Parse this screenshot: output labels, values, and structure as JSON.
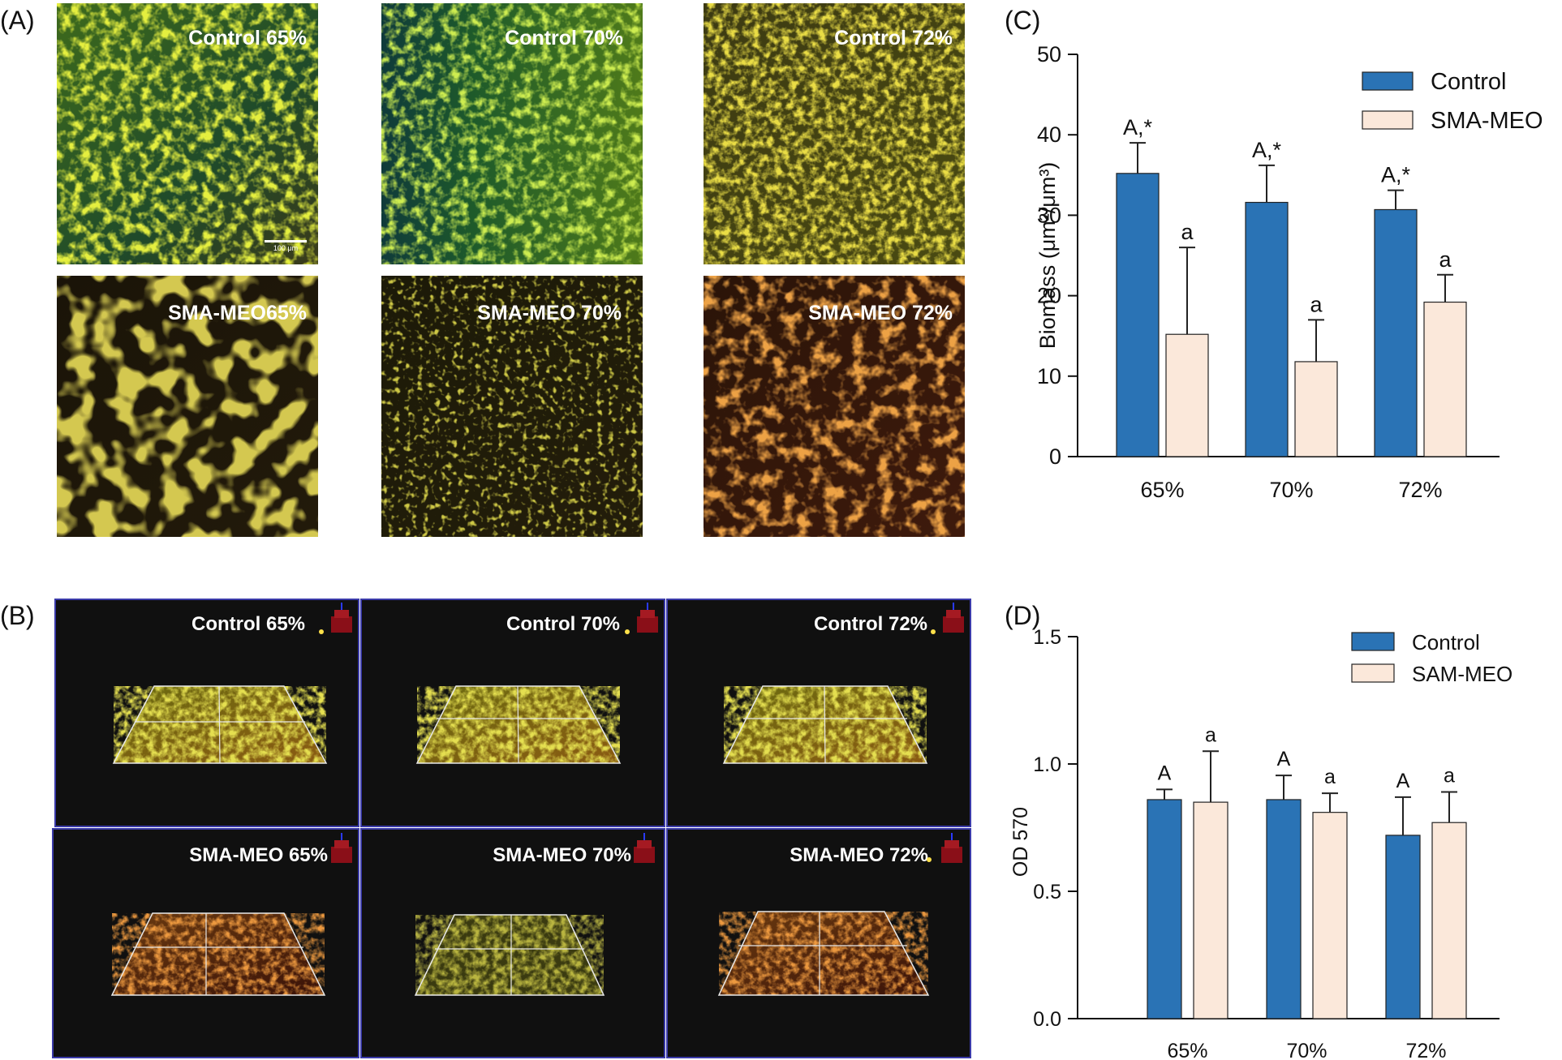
{
  "figure": {
    "panel_labels": [
      "(A)",
      "(B)",
      "(C)",
      "(D)"
    ],
    "colors": {
      "control": "#2a73b5",
      "treatment": "#fbe8da",
      "image_bg": "#101010",
      "frame_border": "#3a3aa8"
    }
  },
  "panelA": {
    "scale_bar": "100 μm",
    "tiles": [
      {
        "label": "Control 65%",
        "palette": "control-dense"
      },
      {
        "label": "Control 70%",
        "palette": "control-green"
      },
      {
        "label": "Control 72%",
        "palette": "control-yellow"
      },
      {
        "label": "SMA-MEO65%",
        "palette": "meo-network"
      },
      {
        "label": "SMA-MEO 70%",
        "palette": "meo-sparse"
      },
      {
        "label": "SMA-MEO 72%",
        "palette": "meo-red"
      }
    ]
  },
  "panelB": {
    "icon": "axis-3d-icon",
    "tiles": [
      {
        "label": "Control 65%"
      },
      {
        "label": "Control 70%"
      },
      {
        "label": "Control 72%"
      },
      {
        "label": "SMA-MEO 65%"
      },
      {
        "label": "SMA-MEO 70%"
      },
      {
        "label": "SMA-MEO 72%"
      }
    ]
  },
  "chart_data": [
    {
      "id": "C",
      "type": "bar",
      "categories": [
        "65%",
        "70%",
        "72%"
      ],
      "series": [
        {
          "name": "Control",
          "values": [
            35.2,
            31.6,
            30.7
          ],
          "errors": [
            3.8,
            4.6,
            2.4
          ],
          "sig": [
            "A,*",
            "A,*",
            "A,*"
          ]
        },
        {
          "name": "SMA-MEO",
          "values": [
            15.2,
            11.8,
            19.2
          ],
          "errors": [
            10.8,
            5.2,
            3.4
          ],
          "sig": [
            "a",
            "a",
            "a"
          ]
        }
      ],
      "ylabel_main": "Biomass",
      "ylabel_units": "(μm²/μm³)",
      "ylim": [
        0,
        50
      ],
      "yticks": [
        "0",
        "10",
        "20",
        "30",
        "40",
        "50"
      ],
      "legend": "top-right"
    },
    {
      "id": "D",
      "type": "bar",
      "categories": [
        "65%",
        "70%",
        "72%"
      ],
      "series": [
        {
          "name": "Control",
          "values": [
            0.86,
            0.86,
            0.72
          ],
          "errors": [
            0.04,
            0.095,
            0.15
          ],
          "sig": [
            "A",
            "A",
            "A"
          ]
        },
        {
          "name": "SAM-MEO",
          "values": [
            0.85,
            0.81,
            0.77
          ],
          "errors": [
            0.2,
            0.075,
            0.12
          ],
          "sig": [
            "a",
            "a",
            "a"
          ]
        }
      ],
      "ylabel": "OD 570",
      "ylim": [
        0,
        1.5
      ],
      "yticks": [
        "0.0",
        "0.5",
        "1.0",
        "1.5"
      ],
      "legend": "top-right"
    }
  ]
}
